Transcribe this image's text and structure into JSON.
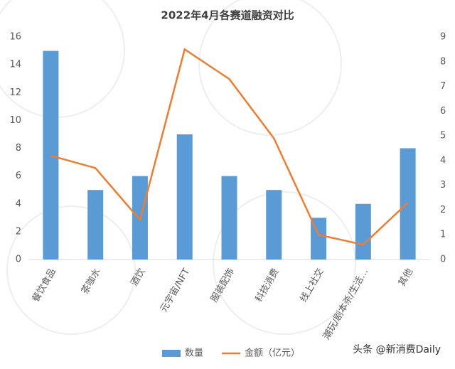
{
  "chart_data": {
    "type": "bar",
    "title": "2022年4月各赛道融资对比",
    "categories": [
      "餐饮食品",
      "茶咖水",
      "酒饮",
      "元宇宙/NFT",
      "服装配饰",
      "科技消费",
      "线上社交",
      "潮玩/剧本杀/生活…",
      "其他"
    ],
    "series": [
      {
        "name": "数量",
        "type": "bar",
        "color": "#5b9bd5",
        "values": [
          15,
          5,
          6,
          9,
          6,
          5,
          3,
          4,
          8
        ]
      },
      {
        "name": "金额（亿元）",
        "type": "line",
        "axis": "y2",
        "color": "#ed7d31",
        "values": [
          4.2,
          3.7,
          1.6,
          8.5,
          7.3,
          4.9,
          1.0,
          0.6,
          2.3
        ]
      }
    ],
    "ylim": [
      0,
      16
    ],
    "yticks": [
      0,
      2,
      4,
      6,
      8,
      10,
      12,
      14,
      16
    ],
    "y2lim": [
      0,
      9
    ],
    "y2ticks": [
      0,
      1,
      2,
      3,
      4,
      5,
      6,
      7,
      8,
      9
    ],
    "grid": false,
    "legend": "bottom",
    "watermark": "头条 @新消费Daily"
  }
}
